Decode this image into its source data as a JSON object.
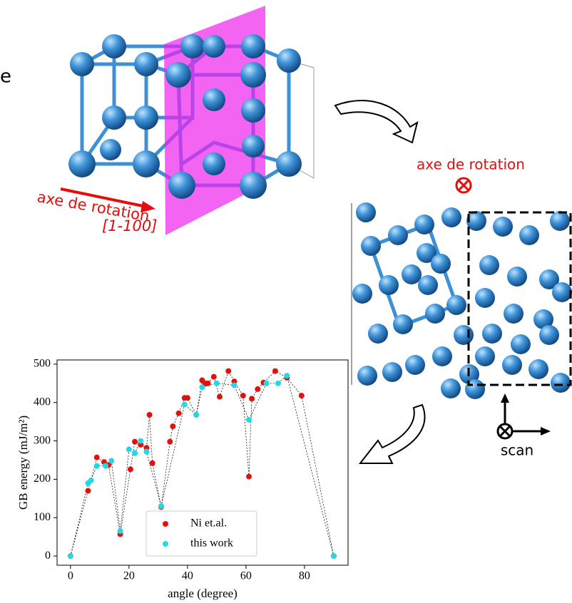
{
  "cropped_text": "e",
  "crystal_labels": {
    "axis_left": "axe de rotation",
    "direction": "[1-100]",
    "axis_right": "axe de rotation",
    "scan": "scan"
  },
  "chart_data": {
    "type": "scatter",
    "x_label": "angle (degree)",
    "y_label": "GB energy (mJ/m²)",
    "xlim": [
      -4.6,
      94.9
    ],
    "ylim": [
      -24,
      511
    ],
    "xticks": [
      0,
      20,
      40,
      60,
      80
    ],
    "yticks": [
      0,
      100,
      200,
      300,
      400,
      500
    ],
    "legend": "lower center",
    "series": [
      {
        "name": "Ni et.al.",
        "color": "#e0120c",
        "x": [
          0,
          6,
          9,
          11.5,
          13,
          17,
          20.5,
          22,
          24,
          26,
          27,
          28,
          31,
          34,
          35,
          37,
          39,
          40,
          43,
          45,
          46,
          47,
          49,
          51,
          54,
          56,
          59,
          61,
          62,
          64,
          66,
          70,
          74,
          79,
          90
        ],
        "values": [
          0,
          170,
          257,
          245,
          237,
          57,
          226,
          298,
          290,
          282,
          368,
          242,
          128,
          298,
          338,
          372,
          412,
          412,
          368,
          458,
          450,
          450,
          467,
          415,
          482,
          455,
          418,
          207,
          410,
          435,
          452,
          482,
          465,
          418,
          0
        ]
      },
      {
        "name": "this work",
        "color": "#22d8e8",
        "x": [
          0,
          6,
          7,
          9,
          12,
          14,
          17,
          20,
          22,
          24,
          26,
          31,
          39,
          43,
          45,
          50,
          56,
          61,
          67,
          71,
          74,
          90
        ],
        "values": [
          0,
          190,
          197,
          235,
          235,
          248,
          65,
          278,
          268,
          300,
          272,
          130,
          395,
          368,
          440,
          450,
          445,
          355,
          450,
          450,
          470,
          0
        ]
      }
    ]
  }
}
